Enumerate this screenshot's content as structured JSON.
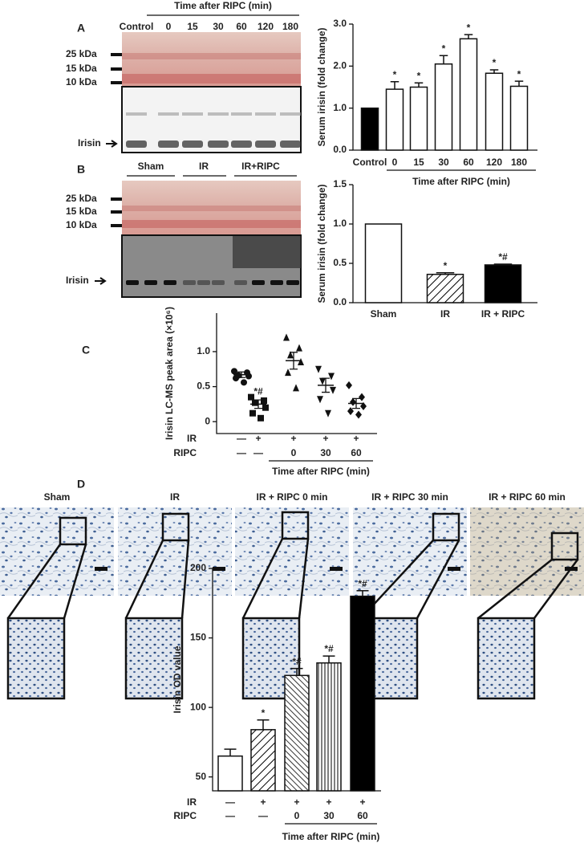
{
  "panel_labels": [
    "A",
    "B",
    "C",
    "D"
  ],
  "blot_a": {
    "header": "Time after RIPC (min)",
    "lanes": [
      "Control",
      "0",
      "15",
      "30",
      "60",
      "120",
      "180"
    ],
    "markers": [
      "25 kDa",
      "15 kDa",
      "10 kDa"
    ],
    "band_label": "Irisin"
  },
  "blot_b": {
    "groups": [
      "Sham",
      "IR",
      "IR+RIPC"
    ],
    "markers": [
      "25 kDa",
      "15 kDa",
      "10 kDa"
    ],
    "band_label": "Irisin"
  },
  "micrographs": [
    "Sham",
    "IR",
    "IR + RIPC 0 min",
    "IR + RIPC 30 min",
    "IR + RIPC 60 min"
  ],
  "chart_data": [
    {
      "type": "bar",
      "ylabel": "Serum irisin (fold change)",
      "xlabel": "Time after RIPC (min)",
      "categories": [
        "Control",
        "0",
        "15",
        "30",
        "60",
        "120",
        "180"
      ],
      "values": [
        1.0,
        1.45,
        1.5,
        2.05,
        2.65,
        1.83,
        1.52
      ],
      "errors": [
        0,
        0.18,
        0.1,
        0.2,
        0.1,
        0.08,
        0.12
      ],
      "annotations": [
        null,
        "*",
        "*",
        "*",
        "*",
        "*",
        "*"
      ],
      "colors": [
        "#000000",
        "#ffffff",
        "#ffffff",
        "#ffffff",
        "#ffffff",
        "#ffffff",
        "#ffffff"
      ],
      "hatches": [
        null,
        null,
        null,
        null,
        null,
        null,
        null
      ],
      "ylim": [
        0,
        3.0
      ],
      "yticks": [
        {
          "value": 0,
          "label": "0.0"
        },
        {
          "value": 1,
          "label": "1.0"
        },
        {
          "value": 2,
          "label": "2.0"
        },
        {
          "value": 3,
          "label": "3.0"
        }
      ]
    },
    {
      "type": "bar",
      "ylabel": "Serum irisin (fold change)",
      "categories": [
        "Sham",
        "IR",
        "IR + RIPC"
      ],
      "values": [
        1.0,
        0.36,
        0.48
      ],
      "errors": [
        0,
        0.02,
        0.01
      ],
      "annotations": [
        null,
        "*",
        "*#"
      ],
      "colors": [
        "#ffffff",
        "#ffffff",
        "#000000"
      ],
      "hatches": [
        null,
        "diagonal",
        null
      ],
      "ylim": [
        0,
        1.5
      ],
      "yticks": [
        {
          "value": 0,
          "label": "0.0"
        },
        {
          "value": 0.5,
          "label": "0.5"
        },
        {
          "value": 1,
          "label": "1.0"
        },
        {
          "value": 1.5,
          "label": "1.5"
        }
      ]
    },
    {
      "type": "scatter",
      "ylabel": "Irisin LC-MS peak area (×10⁶)",
      "xlabel": "Time after RIPC (min)",
      "points": [
        [
          0.72,
          0.7,
          0.66,
          0.65,
          0.62,
          0.56
        ],
        [
          0.35,
          0.3,
          0.27,
          0.2,
          0.12,
          0.05
        ],
        [
          1.2,
          1.05,
          0.95,
          0.85,
          0.7,
          0.48
        ],
        [
          0.75,
          0.65,
          0.58,
          0.45,
          0.32,
          0.12
        ],
        [
          0.52,
          0.35,
          0.28,
          0.22,
          0.15,
          0.1
        ]
      ],
      "means": [
        0.67,
        0.25,
        0.87,
        0.52,
        0.26
      ],
      "sems": [
        0.04,
        0.06,
        0.12,
        0.1,
        0.07
      ],
      "markers": [
        "circle",
        "square",
        "triangle-up",
        "triangle-down",
        "diamond"
      ],
      "annotations": [
        null,
        "*#",
        null,
        null,
        null
      ],
      "rows": [
        {
          "label": "IR",
          "values": [
            "—",
            "+",
            "+",
            "+",
            "+"
          ]
        },
        {
          "label": "RIPC",
          "values": [
            "—",
            "—",
            "0",
            "30",
            "60"
          ]
        }
      ],
      "ylim": [
        -0.17,
        1.55
      ],
      "yticks": [
        0,
        0.5,
        {
          "value": 1,
          "label": "1.0"
        }
      ]
    },
    {
      "type": "bar",
      "ylabel": "Irisin OD value",
      "xlabel": "Time after RIPC (min)",
      "values": [
        65,
        84,
        123,
        132,
        180
      ],
      "errors": [
        5,
        7,
        5,
        5,
        4
      ],
      "annotations": [
        null,
        "*",
        "*#",
        "*#",
        "*#"
      ],
      "colors": [
        "#ffffff",
        "#ffffff",
        "#ffffff",
        "#ffffff",
        "#000000"
      ],
      "hatches": [
        null,
        "diagonal",
        "backslash",
        "vertical",
        null
      ],
      "rows": [
        {
          "label": "IR",
          "values": [
            "—",
            "+",
            "+",
            "+",
            "+"
          ]
        },
        {
          "label": "RIPC",
          "values": [
            "—",
            "—",
            "0",
            "30",
            "60"
          ]
        }
      ],
      "ylim": [
        40,
        200
      ],
      "yticks": [
        50,
        100,
        150,
        200
      ]
    }
  ]
}
